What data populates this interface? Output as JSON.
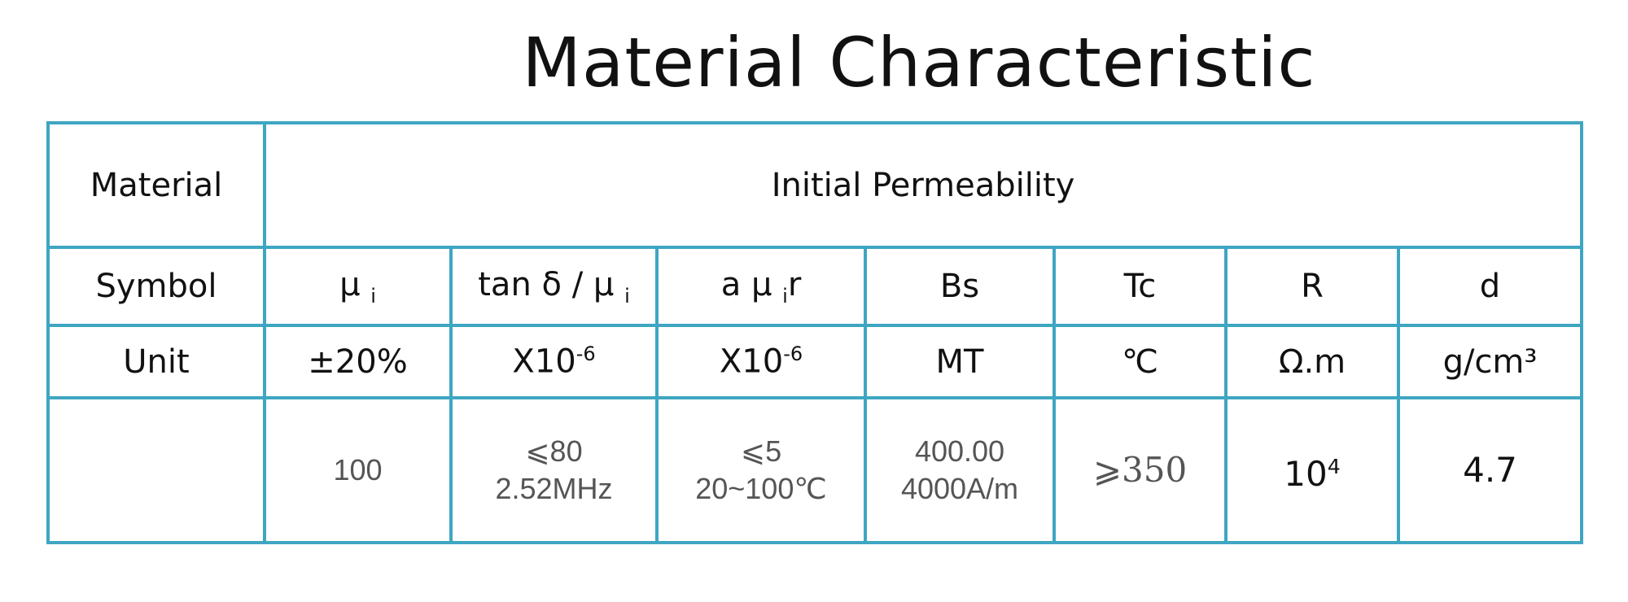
{
  "title": "Material Characteristic",
  "table": {
    "header": [
      "Material",
      "Initial Permeability"
    ],
    "symbol": {
      "label": "Symbol",
      "cells": [
        [
          "μ",
          "i"
        ],
        [
          "tan δ / μ",
          "i"
        ],
        [
          "a μ",
          "i",
          "r"
        ],
        [
          "Bs"
        ],
        [
          "Tc"
        ],
        [
          "R"
        ],
        [
          "d"
        ]
      ]
    },
    "unit": {
      "label": "Unit",
      "cells": [
        [
          "±20%"
        ],
        [
          "X10",
          "-6"
        ],
        [
          "X10",
          "-6"
        ],
        [
          "MT"
        ],
        [
          "℃"
        ],
        [
          "Ω.m"
        ],
        [
          "g/cm³"
        ]
      ]
    },
    "values": [
      [
        "100"
      ],
      [
        "⩽80",
        "2.52MHz"
      ],
      [
        "⩽5",
        "20~100℃"
      ],
      [
        "400.00",
        "4000A/m"
      ],
      [
        "⩾350"
      ],
      [
        "10",
        "4"
      ],
      [
        "4.7"
      ]
    ]
  }
}
